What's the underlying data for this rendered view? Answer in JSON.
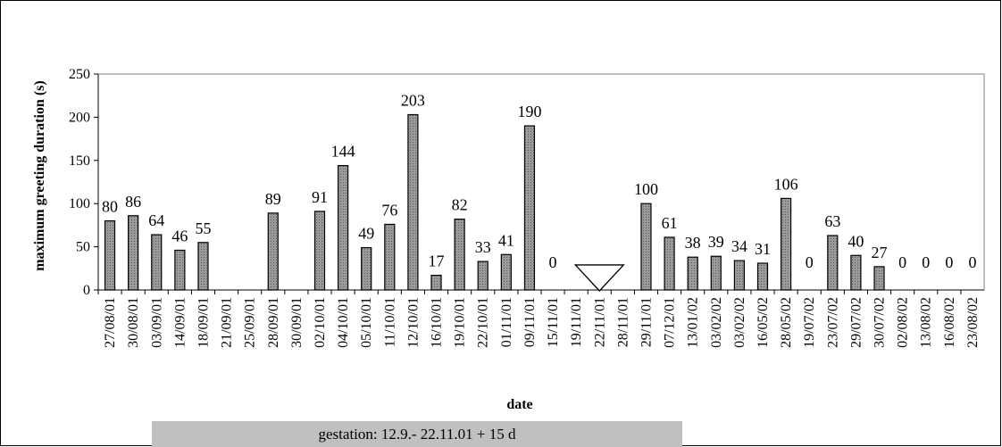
{
  "chart_data": {
    "type": "bar",
    "xlabel": "date",
    "ylabel": "maximum greeting duration (s)",
    "ylim": [
      0,
      250
    ],
    "yticks": [
      0,
      50,
      100,
      150,
      200,
      250
    ],
    "categories": [
      "27/08/01",
      "30/08/01",
      "03/09/01",
      "14/09/01",
      "18/09/01",
      "21/09/01",
      "25/09/01",
      "28/09/01",
      "30/09/01",
      "02/10/01",
      "04/10/01",
      "05/10/01",
      "11/10/01",
      "12/10/01",
      "16/10/01",
      "19/10/01",
      "22/10/01",
      "01/11/01",
      "09/11/01",
      "15/11/01",
      "19/11/01",
      "22/11/01",
      "28/11/01",
      "29/11/01",
      "07/12/01",
      "13/01/02",
      "03/02/02",
      "03/02/02",
      "16/05/02",
      "28/05/02",
      "19/07/02",
      "23/07/02",
      "29/07/02",
      "30/07/02",
      "02/08/02",
      "13/08/02",
      "16/08/02",
      "23/08/02"
    ],
    "values": [
      80,
      86,
      64,
      46,
      55,
      null,
      null,
      89,
      null,
      91,
      144,
      49,
      76,
      203,
      17,
      82,
      33,
      41,
      190,
      0,
      null,
      null,
      null,
      100,
      61,
      38,
      39,
      34,
      31,
      106,
      0,
      63,
      40,
      27,
      0,
      0,
      0,
      0
    ],
    "labels": [
      "80",
      "86",
      "64",
      "46",
      "55",
      "",
      "",
      "89",
      "",
      "91",
      "144",
      "49",
      "76",
      "203",
      "17",
      "82",
      "33",
      "41",
      "190",
      "0",
      "",
      "",
      "",
      "100",
      "61",
      "38",
      "39",
      "34",
      "31",
      "106",
      "0",
      "63",
      "40",
      "27",
      "0",
      "0",
      "0",
      "0"
    ],
    "bar_color": "#9a9a9a",
    "grid": false,
    "annotations": [
      {
        "shape": "triangle-down",
        "category": "22/11/01"
      }
    ]
  },
  "gestation_text": "gestation: 12.9.- 22.11.01 + 15 d"
}
